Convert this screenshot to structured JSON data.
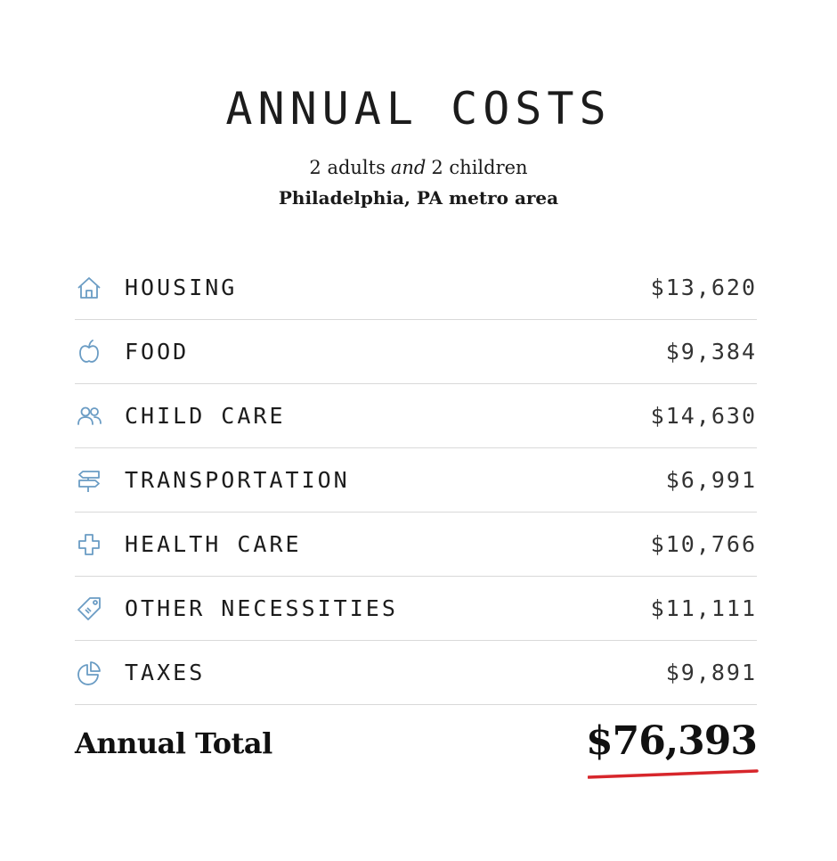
{
  "header": {
    "title": "ANNUAL COSTS",
    "household": {
      "adults": "2 adults",
      "conjunction": "and",
      "children": "2 children"
    },
    "location": "Philadelphia, PA metro area"
  },
  "costs": [
    {
      "icon": "house-icon",
      "label": "HOUSING",
      "amount": "$13,620"
    },
    {
      "icon": "apple-icon",
      "label": "FOOD",
      "amount": "$9,384"
    },
    {
      "icon": "people-icon",
      "label": "CHILD CARE",
      "amount": "$14,630"
    },
    {
      "icon": "signpost-icon",
      "label": "TRANSPORTATION",
      "amount": "$6,991"
    },
    {
      "icon": "medical-cross-icon",
      "label": "HEALTH CARE",
      "amount": "$10,766"
    },
    {
      "icon": "price-tag-icon",
      "label": "OTHER NECESSITIES",
      "amount": "$11,111"
    },
    {
      "icon": "pie-chart-icon",
      "label": "TAXES",
      "amount": "$9,891"
    }
  ],
  "total": {
    "label": "Annual Total",
    "amount": "$76,393"
  },
  "colors": {
    "icon": "#6a9cc4",
    "accent_underline": "#d7262b",
    "divider": "#d9d9d9"
  }
}
